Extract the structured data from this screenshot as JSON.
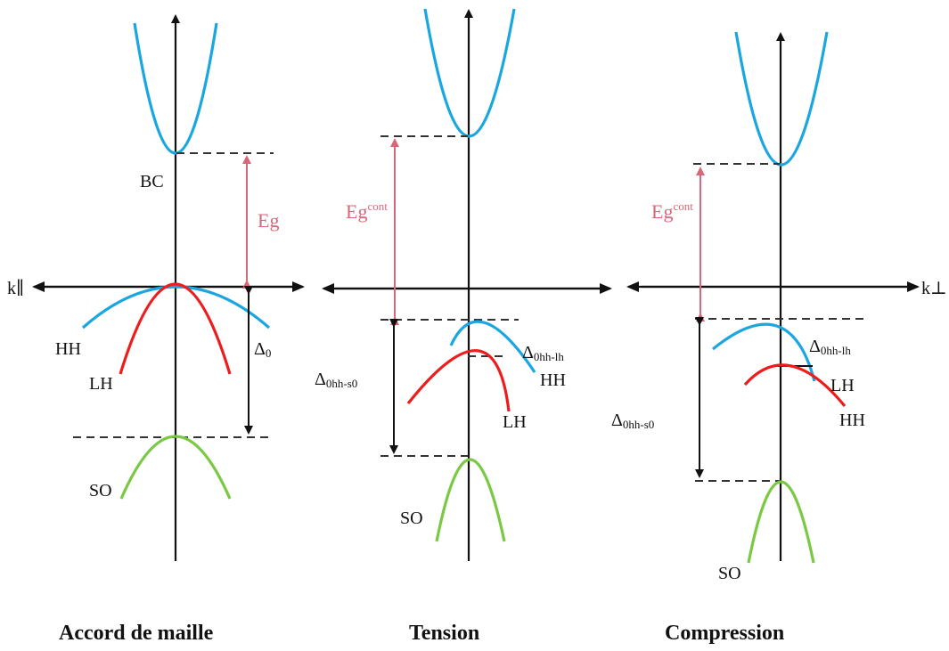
{
  "panels": [
    {
      "caption": "Accord de maille",
      "axis_label": "k∥",
      "labels": {
        "bc": "BC",
        "gap_main": "Eg",
        "delta_main": "Δ",
        "delta_sub": "0",
        "hh": "HH",
        "lh": "LH",
        "so": "SO"
      }
    },
    {
      "caption": "Tension",
      "labels": {
        "gap_main": "Eg",
        "gap_sup": "cont",
        "delta_main": "Δ",
        "delta_sub": "0hh-s0",
        "split_main": "Δ",
        "split_sub": "0hh-lh",
        "hh": "HH",
        "lh": "LH",
        "so": "SO"
      }
    },
    {
      "caption": "Compression",
      "axis_label": "k⊥",
      "labels": {
        "gap_main": "Eg",
        "gap_sup": "cont",
        "delta_main": "Δ",
        "delta_sub": "0hh-s0",
        "split_main": "Δ",
        "split_sub": "0hh-lh",
        "hh": "HH",
        "lh": "LH",
        "so": "SO"
      }
    }
  ],
  "colors": {
    "conduction_band": "#1aa6e0",
    "heavy_holes": "#1aa6e0",
    "light_holes": "#ee1c1c",
    "split_off": "#7ac943",
    "gap_arrow": "#d9677b"
  }
}
